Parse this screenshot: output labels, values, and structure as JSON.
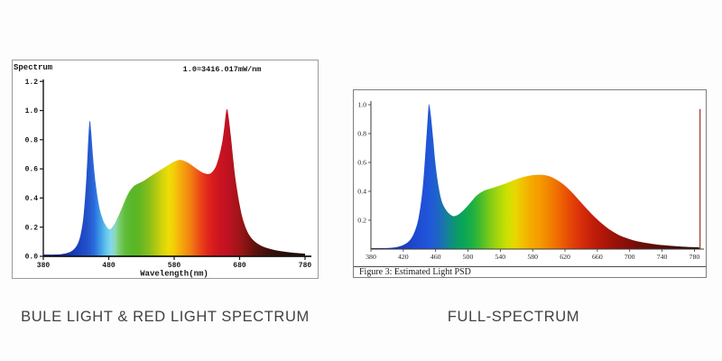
{
  "page": {
    "background": "#fdfdfd"
  },
  "captions": {
    "left": "BULE LIGHT & RED LIGHT SPECTRUM",
    "right": "FULL-SPECTRUM"
  },
  "chart_data": [
    {
      "id": "blue-red-spectrum",
      "type": "area",
      "title": "Spectrum",
      "annotation": "1.0=3416.017mW/nm",
      "xlabel": "Wavelength(nm)",
      "xlim": [
        380,
        790
      ],
      "ylim": [
        0,
        1.2
      ],
      "grid": false,
      "legend": "none",
      "x_ticks": [
        "380",
        "480",
        "580",
        "680",
        "780"
      ],
      "y_ticks": [
        "0.0",
        "0.2",
        "0.4",
        "0.6",
        "0.8",
        "1.0",
        "1.2"
      ],
      "points": [
        [
          380,
          0.012
        ],
        [
          395,
          0.012
        ],
        [
          408,
          0.015
        ],
        [
          418,
          0.025
        ],
        [
          426,
          0.045
        ],
        [
          433,
          0.09
        ],
        [
          438,
          0.17
        ],
        [
          442,
          0.3
        ],
        [
          446,
          0.55
        ],
        [
          449,
          0.82
        ],
        [
          451,
          0.93
        ],
        [
          453,
          0.86
        ],
        [
          456,
          0.68
        ],
        [
          460,
          0.5
        ],
        [
          465,
          0.35
        ],
        [
          470,
          0.265
        ],
        [
          475,
          0.215
        ],
        [
          481,
          0.185
        ],
        [
          487,
          0.21
        ],
        [
          493,
          0.26
        ],
        [
          500,
          0.33
        ],
        [
          506,
          0.395
        ],
        [
          511,
          0.44
        ],
        [
          516,
          0.47
        ],
        [
          521,
          0.49
        ],
        [
          528,
          0.505
        ],
        [
          536,
          0.525
        ],
        [
          544,
          0.55
        ],
        [
          552,
          0.572
        ],
        [
          560,
          0.595
        ],
        [
          568,
          0.618
        ],
        [
          576,
          0.64
        ],
        [
          583,
          0.655
        ],
        [
          589,
          0.662
        ],
        [
          595,
          0.655
        ],
        [
          602,
          0.64
        ],
        [
          609,
          0.618
        ],
        [
          616,
          0.595
        ],
        [
          622,
          0.578
        ],
        [
          628,
          0.567
        ],
        [
          633,
          0.565
        ],
        [
          638,
          0.578
        ],
        [
          643,
          0.61
        ],
        [
          647,
          0.66
        ],
        [
          651,
          0.73
        ],
        [
          654,
          0.8
        ],
        [
          657,
          0.9
        ],
        [
          659,
          0.98
        ],
        [
          661,
          1.01
        ],
        [
          663,
          0.96
        ],
        [
          666,
          0.85
        ],
        [
          669,
          0.72
        ],
        [
          672,
          0.59
        ],
        [
          676,
          0.46
        ],
        [
          680,
          0.355
        ],
        [
          684,
          0.27
        ],
        [
          689,
          0.2
        ],
        [
          694,
          0.152
        ],
        [
          700,
          0.115
        ],
        [
          707,
          0.088
        ],
        [
          715,
          0.068
        ],
        [
          724,
          0.054
        ],
        [
          734,
          0.043
        ],
        [
          745,
          0.034
        ],
        [
          757,
          0.027
        ],
        [
          768,
          0.022
        ],
        [
          780,
          0.018
        ]
      ],
      "gradient": [
        [
          380,
          "#101a5e"
        ],
        [
          412,
          "#14289a"
        ],
        [
          432,
          "#1840c2"
        ],
        [
          448,
          "#2453c8"
        ],
        [
          458,
          "#2a6cde"
        ],
        [
          467,
          "#3f9ce6"
        ],
        [
          476,
          "#63c6ec"
        ],
        [
          483,
          "#84d7ee"
        ],
        [
          490,
          "#8cd8b4"
        ],
        [
          497,
          "#76ca66"
        ],
        [
          505,
          "#60bd3a"
        ],
        [
          515,
          "#57b728"
        ],
        [
          527,
          "#60b722"
        ],
        [
          540,
          "#84bd1c"
        ],
        [
          552,
          "#b0c912"
        ],
        [
          563,
          "#d8d50c"
        ],
        [
          572,
          "#eedd06"
        ],
        [
          580,
          "#f4cc08"
        ],
        [
          588,
          "#f5b00a"
        ],
        [
          596,
          "#f49a0e"
        ],
        [
          605,
          "#f27f12"
        ],
        [
          613,
          "#ef6115"
        ],
        [
          621,
          "#ea4318"
        ],
        [
          630,
          "#e22a1b"
        ],
        [
          640,
          "#d71b1e"
        ],
        [
          650,
          "#ca1420"
        ],
        [
          660,
          "#c01222"
        ],
        [
          670,
          "#b2131e"
        ],
        [
          680,
          "#9e1418"
        ],
        [
          691,
          "#821312"
        ],
        [
          703,
          "#62110d"
        ],
        [
          718,
          "#45100b"
        ],
        [
          736,
          "#301009"
        ],
        [
          757,
          "#230e08"
        ],
        [
          780,
          "#1b0d07"
        ]
      ]
    },
    {
      "id": "full-spectrum-psd",
      "type": "area",
      "caption": "Figure 3: Estimated Light PSD",
      "xlim": [
        380,
        792
      ],
      "ylim": [
        0,
        1.05
      ],
      "grid": false,
      "legend": "none",
      "x_ticks": [
        "380",
        "420",
        "460",
        "500",
        "540",
        "580",
        "620",
        "660",
        "700",
        "740",
        "780"
      ],
      "y_ticks": [
        "0.2",
        "0.4",
        "0.6",
        "0.8",
        "1.0"
      ],
      "points": [
        [
          380,
          0.006
        ],
        [
          398,
          0.007
        ],
        [
          410,
          0.012
        ],
        [
          420,
          0.028
        ],
        [
          428,
          0.06
        ],
        [
          434,
          0.12
        ],
        [
          439,
          0.22
        ],
        [
          444,
          0.42
        ],
        [
          448,
          0.72
        ],
        [
          451,
          0.97
        ],
        [
          452,
          1.0
        ],
        [
          454,
          0.93
        ],
        [
          457,
          0.76
        ],
        [
          460,
          0.58
        ],
        [
          464,
          0.42
        ],
        [
          468,
          0.325
        ],
        [
          473,
          0.27
        ],
        [
          478,
          0.24
        ],
        [
          483,
          0.228
        ],
        [
          489,
          0.243
        ],
        [
          495,
          0.272
        ],
        [
          502,
          0.315
        ],
        [
          508,
          0.355
        ],
        [
          514,
          0.385
        ],
        [
          520,
          0.405
        ],
        [
          527,
          0.418
        ],
        [
          534,
          0.43
        ],
        [
          542,
          0.445
        ],
        [
          550,
          0.462
        ],
        [
          558,
          0.48
        ],
        [
          566,
          0.495
        ],
        [
          574,
          0.506
        ],
        [
          582,
          0.513
        ],
        [
          590,
          0.515
        ],
        [
          597,
          0.51
        ],
        [
          604,
          0.497
        ],
        [
          611,
          0.475
        ],
        [
          618,
          0.448
        ],
        [
          625,
          0.413
        ],
        [
          632,
          0.372
        ],
        [
          639,
          0.328
        ],
        [
          646,
          0.285
        ],
        [
          653,
          0.243
        ],
        [
          660,
          0.205
        ],
        [
          667,
          0.17
        ],
        [
          674,
          0.14
        ],
        [
          681,
          0.115
        ],
        [
          688,
          0.094
        ],
        [
          696,
          0.076
        ],
        [
          704,
          0.062
        ],
        [
          713,
          0.05
        ],
        [
          722,
          0.041
        ],
        [
          732,
          0.033
        ],
        [
          743,
          0.026
        ],
        [
          755,
          0.021
        ],
        [
          767,
          0.016
        ],
        [
          780,
          0.013
        ],
        [
          786,
          0.012
        ]
      ],
      "spike": {
        "x": 787,
        "y": 0.97,
        "color": "#a03226"
      },
      "gradient": [
        [
          380,
          "#141e88"
        ],
        [
          415,
          "#1a38bc"
        ],
        [
          438,
          "#1e4cd2"
        ],
        [
          452,
          "#2156da"
        ],
        [
          462,
          "#1e64c8"
        ],
        [
          471,
          "#1878a8"
        ],
        [
          479,
          "#108c86"
        ],
        [
          486,
          "#0c9a6a"
        ],
        [
          494,
          "#09a558"
        ],
        [
          505,
          "#1cae46"
        ],
        [
          515,
          "#42bb2e"
        ],
        [
          526,
          "#7aca1a"
        ],
        [
          537,
          "#a6d60c"
        ],
        [
          548,
          "#cce002"
        ],
        [
          558,
          "#e6d800"
        ],
        [
          568,
          "#f2c000"
        ],
        [
          578,
          "#f4aa00"
        ],
        [
          588,
          "#f49c00"
        ],
        [
          598,
          "#f28800"
        ],
        [
          608,
          "#f07200"
        ],
        [
          618,
          "#ec5a04"
        ],
        [
          628,
          "#e44408"
        ],
        [
          638,
          "#da300a"
        ],
        [
          648,
          "#cc240a"
        ],
        [
          658,
          "#bc1c0a"
        ],
        [
          670,
          "#ac1609"
        ],
        [
          682,
          "#9a1208"
        ],
        [
          695,
          "#881008"
        ],
        [
          710,
          "#740e07"
        ],
        [
          728,
          "#5e0d06"
        ],
        [
          748,
          "#4a0c06"
        ],
        [
          768,
          "#3a0b05"
        ],
        [
          790,
          "#300a05"
        ]
      ]
    }
  ]
}
